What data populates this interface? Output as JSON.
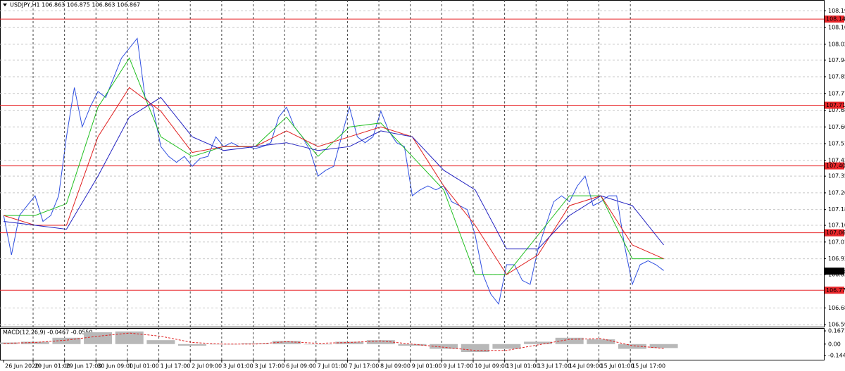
{
  "chart_data": [
    {
      "type": "line",
      "title": "USDJPY,H1  106.863 106.875 106.863 106.867",
      "xlim": [
        -16.85,
        402.5
      ],
      "ylim": [
        106.585,
        108.245
      ],
      "yticks": [
        {
          "value": 108.19,
          "label": "108.190"
        },
        108.105,
        {
          "value": 108.02,
          "label": "108.020"
        },
        {
          "value": 107.94,
          "label": "107.940"
        },
        107.855,
        {
          "value": 107.77,
          "label": "107.770"
        },
        107.685,
        {
          "value": 107.6,
          "label": "107.600"
        },
        107.515,
        {
          "value": 107.43,
          "label": "107.430"
        },
        {
          "value": 107.35,
          "label": "107.350"
        },
        107.265,
        {
          "value": 107.18,
          "label": "107.180"
        },
        {
          "value": 107.1,
          "label": "107.100"
        },
        107.015,
        {
          "value": 106.93,
          "label": "106.930"
        },
        {
          "value": 106.85,
          "label": "106.850"
        },
        {
          "value": 106.68,
          "label": "106.680"
        },
        106.595
      ],
      "grid": true,
      "levels": [
        108.148,
        {
          "value": 107.71,
          "label": "107.710"
        },
        107.402,
        107.062,
        {
          "value": 106.77,
          "label": "106.770"
        }
      ],
      "level_color": "#e8262a",
      "last_price": 106.867,
      "series": [
        {
          "color": "#2f4fe0",
          "width": 1,
          "x": [
            -15,
            -11,
            -7,
            -3,
            1,
            5,
            9,
            13,
            17,
            21,
            25,
            29,
            33,
            37,
            41,
            45,
            49,
            53,
            57,
            61,
            65,
            69,
            73,
            77,
            81,
            85,
            89,
            93,
            97,
            101,
            105,
            109,
            113,
            117,
            121,
            125,
            129,
            133,
            137,
            141,
            145,
            149,
            153,
            157,
            161,
            165,
            169,
            173,
            177,
            181,
            185,
            189,
            193,
            197,
            201,
            205,
            209,
            213,
            217,
            221,
            225,
            229,
            233,
            237,
            241,
            245,
            249,
            253,
            257,
            261,
            265,
            269,
            273,
            277,
            281,
            285,
            289,
            293,
            297,
            301,
            305,
            309,
            313,
            317,
            321
          ],
          "values": [
            107.15,
            106.95,
            107.15,
            107.2,
            107.25,
            107.12,
            107.15,
            107.25,
            107.55,
            107.8,
            107.6,
            107.7,
            107.78,
            107.75,
            107.85,
            107.95,
            108.0,
            108.05,
            107.75,
            107.7,
            107.5,
            107.45,
            107.42,
            107.45,
            107.4,
            107.44,
            107.45,
            107.55,
            107.5,
            107.52,
            107.5,
            107.5,
            107.49,
            107.5,
            107.52,
            107.65,
            107.7,
            107.6,
            107.55,
            107.48,
            107.35,
            107.38,
            107.4,
            107.55,
            107.7,
            107.55,
            107.52,
            107.55,
            107.68,
            107.58,
            107.52,
            107.5,
            107.25,
            107.28,
            107.3,
            107.28,
            107.3,
            107.22,
            107.2,
            107.18,
            107.05,
            106.85,
            106.75,
            106.7,
            106.9,
            106.9,
            106.82,
            106.8,
            106.98,
            107.1,
            107.22,
            107.25,
            107.22,
            107.3,
            107.35,
            107.2,
            107.22,
            107.25,
            107.25,
            107.0,
            106.8,
            106.9,
            106.92,
            106.9,
            106.87
          ]
        },
        {
          "color": "#1fbf1f",
          "width": 1,
          "x": [
            -15,
            1,
            17,
            33,
            49,
            65,
            81,
            97,
            113,
            129,
            145,
            161,
            177,
            193,
            209,
            225,
            241,
            257,
            273,
            289,
            305,
            321
          ],
          "values": [
            107.15,
            107.15,
            107.21,
            107.7,
            107.95,
            107.55,
            107.45,
            107.5,
            107.5,
            107.65,
            107.45,
            107.6,
            107.62,
            107.45,
            107.28,
            106.85,
            106.85,
            107.05,
            107.25,
            107.25,
            106.93,
            106.93
          ]
        },
        {
          "color": "#e02020",
          "width": 1,
          "x": [
            -15,
            1,
            17,
            33,
            49,
            65,
            81,
            97,
            113,
            129,
            145,
            161,
            177,
            193,
            209,
            225,
            241,
            257,
            273,
            289,
            305,
            321
          ],
          "values": [
            107.15,
            107.1,
            107.1,
            107.55,
            107.8,
            107.68,
            107.47,
            107.5,
            107.5,
            107.58,
            107.5,
            107.55,
            107.6,
            107.55,
            107.3,
            107.1,
            106.85,
            106.95,
            107.2,
            107.25,
            107.0,
            106.93
          ]
        },
        {
          "color": "#2020c0",
          "width": 1,
          "x": [
            -15,
            1,
            17,
            33,
            49,
            65,
            81,
            97,
            113,
            129,
            145,
            161,
            177,
            193,
            209,
            225,
            241,
            257,
            273,
            289,
            305,
            321
          ],
          "values": [
            107.12,
            107.1,
            107.08,
            107.35,
            107.65,
            107.75,
            107.55,
            107.48,
            107.5,
            107.52,
            107.48,
            107.5,
            107.58,
            107.55,
            107.38,
            107.28,
            106.98,
            106.98,
            107.15,
            107.25,
            107.2,
            107.0
          ]
        }
      ]
    },
    {
      "type": "macd",
      "title": "MACD(12,26,9) -0.0467 -0.0550",
      "xlim": [
        -16.85,
        402.5
      ],
      "ylim": [
        -0.207,
        0.203
      ],
      "yticks": [
        0.1671,
        {
          "value": 0,
          "label": "0.00"
        },
        -0.1448
      ],
      "xticks": [
        {
          "value": -15,
          "label": "26 Jun 2020"
        },
        {
          "value": 0,
          "label": "29 Jun 01:00"
        },
        {
          "value": 16,
          "label": "29 Jun 17:00"
        },
        {
          "value": 32,
          "label": "30 Jun 09:00"
        },
        {
          "value": 48,
          "label": "1 Jul 01:00"
        },
        {
          "value": 64,
          "label": "1 Jul 17:00"
        },
        {
          "value": 80,
          "label": "2 Jul 09:00"
        },
        {
          "value": 96,
          "label": "3 Jul 01:00"
        },
        {
          "value": 112,
          "label": "3 Jul 17:00"
        },
        {
          "value": 128,
          "label": "6 Jul 09:00"
        },
        {
          "value": 144,
          "label": "7 Jul 01:00"
        },
        {
          "value": 160,
          "label": "7 Jul 17:00"
        },
        {
          "value": 176,
          "label": "8 Jul 09:00"
        },
        {
          "value": 192,
          "label": "9 Jul 01:00"
        },
        {
          "value": 208,
          "label": "9 Jul 17:00"
        },
        {
          "value": 224,
          "label": "10 Jul 09:00"
        },
        {
          "value": 240,
          "label": "13 Jul 01:00"
        },
        {
          "value": 256,
          "label": "13 Jul 17:00"
        },
        {
          "value": 272,
          "label": "14 Jul 09:00"
        },
        {
          "value": 288,
          "label": "15 Jul 01:00"
        },
        {
          "value": 304,
          "label": "15 Jul 17:00"
        }
      ],
      "series": [
        {
          "style": "histogram",
          "color": "#b8b8b8",
          "x": [
            -15,
            1,
            17,
            33,
            49,
            65,
            81,
            97,
            113,
            129,
            145,
            161,
            177,
            193,
            209,
            225,
            241,
            257,
            273,
            289,
            305,
            321
          ],
          "values": [
            0.02,
            0.03,
            0.08,
            0.15,
            0.16,
            0.05,
            -0.02,
            0.0,
            0.01,
            0.04,
            0.0,
            0.03,
            0.05,
            -0.02,
            -0.06,
            -0.1,
            -0.06,
            0.03,
            0.08,
            0.06,
            -0.06,
            -0.05
          ]
        },
        {
          "style": "dashed",
          "color": "#e02020",
          "x": [
            -15,
            1,
            17,
            33,
            49,
            65,
            81,
            97,
            113,
            129,
            145,
            161,
            177,
            193,
            209,
            225,
            241,
            257,
            273,
            289,
            305,
            321
          ],
          "values": [
            0.01,
            0.02,
            0.05,
            0.1,
            0.14,
            0.1,
            0.02,
            0.0,
            0.0,
            0.03,
            0.01,
            0.02,
            0.04,
            0.0,
            -0.04,
            -0.08,
            -0.08,
            -0.01,
            0.06,
            0.07,
            -0.02,
            -0.055
          ]
        }
      ]
    }
  ]
}
